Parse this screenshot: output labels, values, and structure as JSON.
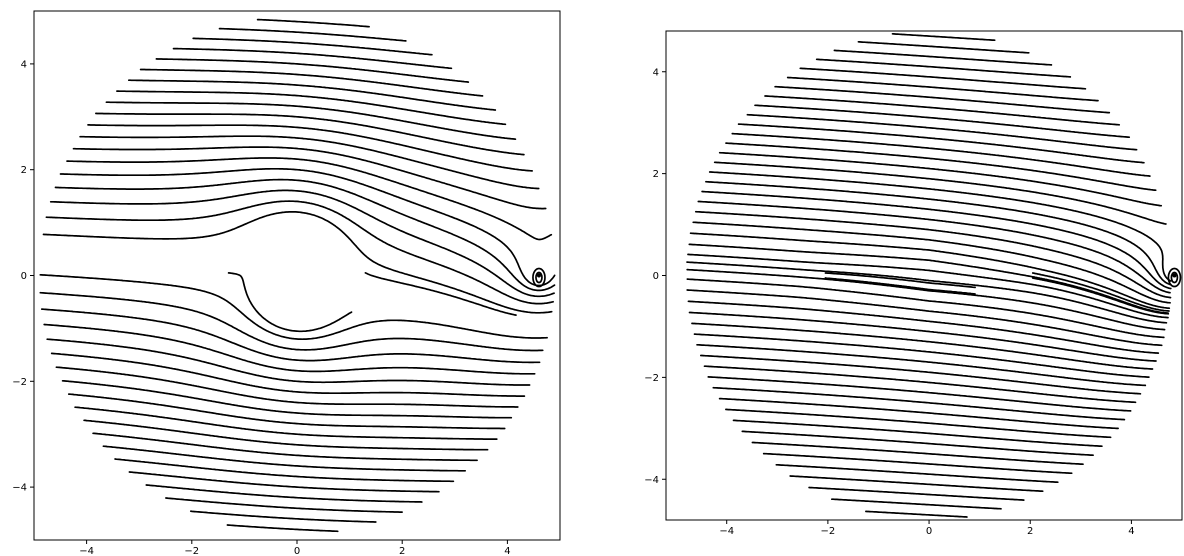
{
  "chart_data": [
    {
      "type": "streamline",
      "panel": "left",
      "title": "",
      "xlabel": "",
      "ylabel": "",
      "xlim": [
        -5,
        5
      ],
      "ylim": [
        -5,
        5
      ],
      "xticks": [
        -4,
        -2,
        0,
        2,
        4
      ],
      "yticks": [
        -4,
        -2,
        0,
        2,
        4
      ],
      "grid": false,
      "legend": null,
      "line_color": "#000000",
      "domain_radius": 4.9,
      "obstacle_radius": 1.0,
      "flow_direction": "left-to-right",
      "vortex": {
        "x": 4.6,
        "y": 0.0
      },
      "streamline_spacing": 0.2
    },
    {
      "type": "streamline",
      "panel": "right",
      "title": "",
      "xlabel": "",
      "ylabel": "",
      "xlim": [
        -5.2,
        5
      ],
      "ylim": [
        -4.8,
        4.8
      ],
      "xticks": [
        -4,
        -2,
        0,
        2,
        4
      ],
      "yticks": [
        -4,
        -2,
        0,
        2,
        4
      ],
      "grid": false,
      "legend": null,
      "line_color": "#000000",
      "domain_radius": 4.8,
      "plate": {
        "x_from": -2,
        "x_to": 2,
        "y": 0
      },
      "flow_direction": "left-to-right",
      "vortex": {
        "x": 4.85,
        "y": 0.0
      },
      "streamline_spacing": 0.2
    }
  ]
}
